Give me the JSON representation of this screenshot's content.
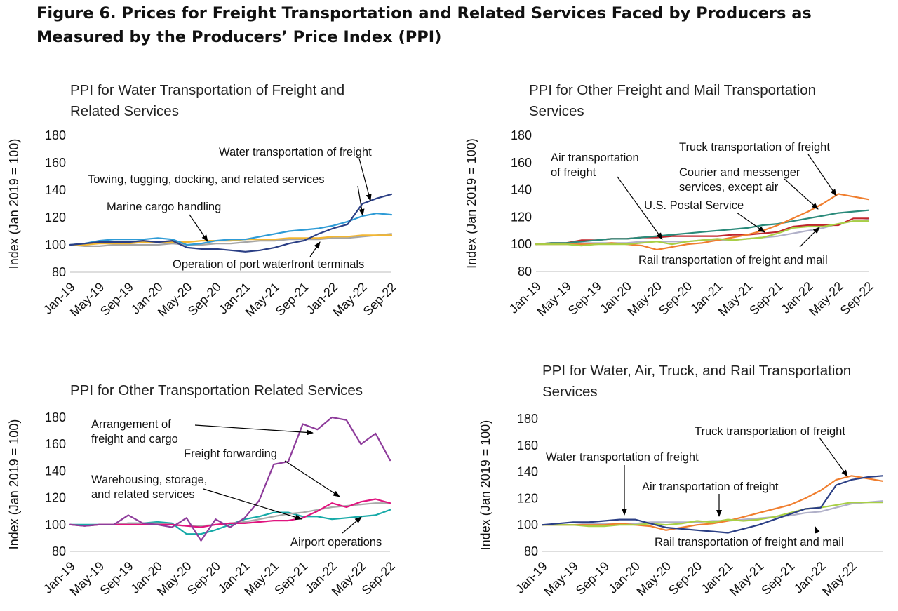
{
  "figure": {
    "title": "Figure 6. Prices for Freight Transportation and Related Services Faced by Producers as Measured by the Producers’ Price Index (PPI)"
  },
  "chart_data": [
    {
      "type": "line",
      "id": "water",
      "title": [
        "PPI for Water Transportation of Freight and",
        "Related Services"
      ],
      "ylabel": "Index (Jan 2019 = 100)",
      "ylim": [
        80,
        180
      ],
      "yticks": [
        80,
        100,
        120,
        140,
        160,
        180
      ],
      "xticks": [
        "Jan-19",
        "May-19",
        "Sep-19",
        "Jan-20",
        "May-20",
        "Sep-20",
        "Jan-21",
        "May-21",
        "Sep-21",
        "Jan-22",
        "May-22",
        "Sep-22"
      ],
      "grid": false,
      "x": [
        "Jan-19",
        "Mar-19",
        "May-19",
        "Jul-19",
        "Sep-19",
        "Nov-19",
        "Jan-20",
        "Mar-20",
        "May-20",
        "Jul-20",
        "Sep-20",
        "Nov-20",
        "Jan-21",
        "Mar-21",
        "May-21",
        "Jul-21",
        "Sep-21",
        "Nov-21",
        "Jan-22",
        "Mar-22",
        "May-22",
        "Jul-22",
        "Sep-22"
      ],
      "series": [
        {
          "name": "Water transportation of freight",
          "color": "#2b3f85",
          "values": [
            100,
            101,
            102,
            102,
            102,
            103,
            102,
            103,
            98,
            97,
            97,
            96,
            95,
            96,
            98,
            101,
            103,
            108,
            112,
            115,
            130,
            134,
            137
          ]
        },
        {
          "name": "Towing, tugging, docking, and related services",
          "color": "#2e9bd6",
          "values": [
            100,
            101,
            103,
            104,
            104,
            104,
            105,
            104,
            100,
            101,
            103,
            104,
            104,
            106,
            108,
            110,
            111,
            112,
            114,
            117,
            121,
            123,
            122
          ]
        },
        {
          "name": "Marine cargo handling",
          "color": "#f2b632",
          "values": [
            100,
            100,
            101,
            101,
            101,
            102,
            102,
            102,
            102,
            103,
            103,
            103,
            104,
            104,
            104,
            105,
            105,
            105,
            106,
            106,
            107,
            107,
            107
          ]
        },
        {
          "name": "Operation of port waterfront terminals",
          "color": "#a6a6a6",
          "values": [
            100,
            99,
            99,
            100,
            100,
            100,
            100,
            101,
            100,
            100,
            101,
            101,
            102,
            103,
            103,
            104,
            104,
            104,
            105,
            105,
            106,
            107,
            108
          ]
        }
      ],
      "annotations": [
        {
          "text": "Water transportation of freight",
          "series": 0
        },
        {
          "text": "Towing, tugging, docking, and related services",
          "series": 1
        },
        {
          "text": "Marine cargo handling",
          "series": 2
        },
        {
          "text": "Operation of port waterfront terminals",
          "series": 3
        }
      ]
    },
    {
      "type": "line",
      "id": "other-freight",
      "title": [
        "PPI for Other Freight and Mail Transportation",
        "Services"
      ],
      "ylabel": "Index (Jan 2019 = 100)",
      "ylim": [
        80,
        180
      ],
      "yticks": [
        80,
        100,
        120,
        140,
        160,
        180
      ],
      "xticks": [
        "Jan-19",
        "May-19",
        "Sep-19",
        "Jan-20",
        "May-20",
        "Sep-20",
        "Jan-21",
        "May-21",
        "Sep-21",
        "Jan-22",
        "May-22",
        "Sep-22"
      ],
      "grid": false,
      "x": [
        "Jan-19",
        "Mar-19",
        "May-19",
        "Jul-19",
        "Sep-19",
        "Nov-19",
        "Jan-20",
        "Mar-20",
        "May-20",
        "Jul-20",
        "Sep-20",
        "Nov-20",
        "Jan-21",
        "Mar-21",
        "May-21",
        "Jul-21",
        "Sep-21",
        "Nov-21",
        "Jan-22",
        "Mar-22",
        "May-22",
        "Jul-22",
        "Sep-22"
      ],
      "series": [
        {
          "name": "Air transportation of freight",
          "color": "#a8cf45",
          "values": [
            100,
            100,
            100,
            99,
            100,
            100,
            100,
            101,
            102,
            100,
            102,
            103,
            104,
            103,
            104,
            105,
            108,
            112,
            113,
            113,
            115,
            117,
            117
          ]
        },
        {
          "name": "Truck transportation of freight",
          "color": "#f07e2e",
          "values": [
            100,
            100,
            100,
            100,
            100,
            101,
            100,
            99,
            96,
            98,
            100,
            101,
            103,
            105,
            107,
            110,
            114,
            119,
            124,
            130,
            137,
            135,
            133
          ]
        },
        {
          "name": "Courier and messenger services, except air",
          "color": "#2a8a7a",
          "values": [
            100,
            101,
            101,
            102,
            103,
            104,
            104,
            105,
            106,
            107,
            108,
            109,
            110,
            111,
            112,
            114,
            115,
            117,
            119,
            121,
            123,
            124,
            125
          ]
        },
        {
          "name": "U.S. Postal Service",
          "color": "#c0262d",
          "values": [
            100,
            101,
            101,
            103,
            103,
            104,
            104,
            105,
            105,
            106,
            106,
            106,
            106,
            107,
            107,
            108,
            109,
            113,
            114,
            114,
            114,
            119,
            119
          ]
        },
        {
          "name": "Rail transportation of freight and mail",
          "color": "#b0b0c8",
          "values": [
            100,
            100,
            100,
            101,
            101,
            101,
            101,
            102,
            102,
            102,
            102,
            103,
            103,
            103,
            104,
            105,
            106,
            108,
            110,
            112,
            115,
            117,
            118
          ]
        }
      ],
      "annotations": [
        {
          "text": [
            "Air transportation",
            "of freight"
          ],
          "series": 0
        },
        {
          "text": "Truck transportation of freight",
          "series": 1
        },
        {
          "text": [
            "Courier and messenger",
            "services, except air"
          ],
          "series": 2
        },
        {
          "text": "U.S. Postal Service",
          "series": 3
        },
        {
          "text": "Rail transportation of freight and mail",
          "series": 4
        }
      ]
    },
    {
      "type": "line",
      "id": "other-related",
      "title": [
        "PPI for Other Transportation Related Services"
      ],
      "ylabel": "Index (Jan 2019 = 100)",
      "ylim": [
        80,
        180
      ],
      "yticks": [
        80,
        100,
        120,
        140,
        160,
        180
      ],
      "xticks": [
        "Jan-19",
        "May-19",
        "Sep-19",
        "Jan-20",
        "May-20",
        "Sep-20",
        "Jan-21",
        "May-21",
        "Sep-21",
        "Jan-22",
        "May-22",
        "Sep-22"
      ],
      "grid": false,
      "x": [
        "Jan-19",
        "Mar-19",
        "May-19",
        "Jul-19",
        "Sep-19",
        "Nov-19",
        "Jan-20",
        "Mar-20",
        "May-20",
        "Jul-20",
        "Sep-20",
        "Nov-20",
        "Jan-21",
        "Mar-21",
        "May-21",
        "Jul-21",
        "Sep-21",
        "Nov-21",
        "Jan-22",
        "Mar-22",
        "May-22",
        "Jul-22",
        "Sep-22"
      ],
      "series": [
        {
          "name": "Arrangement of freight and cargo",
          "color": "#8e3c9b",
          "values": [
            100,
            99,
            100,
            100,
            107,
            101,
            100,
            98,
            105,
            88,
            104,
            98,
            105,
            118,
            145,
            147,
            175,
            171,
            180,
            178,
            160,
            168,
            148
          ]
        },
        {
          "name": "Freight forwarding",
          "color": "#e0147f",
          "values": [
            100,
            99,
            100,
            100,
            100,
            100,
            100,
            100,
            99,
            98,
            100,
            101,
            101,
            102,
            103,
            103,
            105,
            110,
            116,
            113,
            117,
            119,
            116
          ]
        },
        {
          "name": "Warehousing, storage, and related services",
          "color": "#aaaaaa",
          "values": [
            100,
            99,
            100,
            100,
            101,
            101,
            101,
            100,
            99,
            99,
            100,
            101,
            102,
            104,
            106,
            108,
            109,
            111,
            113,
            114,
            115,
            116,
            116
          ]
        },
        {
          "name": "Airport operations",
          "color": "#17aaa8",
          "values": [
            100,
            100,
            100,
            100,
            101,
            101,
            102,
            101,
            93,
            93,
            96,
            100,
            104,
            106,
            109,
            109,
            106,
            106,
            104,
            105,
            106,
            107,
            111
          ]
        }
      ],
      "annotations": [
        {
          "text": [
            "Arrangement of",
            "freight and cargo"
          ],
          "series": 0
        },
        {
          "text": "Freight forwarding",
          "series": 1
        },
        {
          "text": [
            "Warehousing, storage,",
            "and related services"
          ],
          "series": 2
        },
        {
          "text": "Airport operations",
          "series": 3
        }
      ]
    },
    {
      "type": "line",
      "id": "modes",
      "title": [
        "PPI for Water, Air, Truck, and Rail Transportation",
        "Services"
      ],
      "ylabel": "Index (Jan 2019 = 100)",
      "ylim": [
        80,
        180
      ],
      "yticks": [
        80,
        100,
        120,
        140,
        160,
        180
      ],
      "xticks": [
        "Jan-19",
        "May-19",
        "Sep-19",
        "Jan-20",
        "May-20",
        "Sep-20",
        "Jan-21",
        "May-21",
        "Sep-21",
        "Jan-22",
        "May-22"
      ],
      "grid": false,
      "x": [
        "Jan-19",
        "Mar-19",
        "May-19",
        "Jul-19",
        "Sep-19",
        "Nov-19",
        "Jan-20",
        "Mar-20",
        "May-20",
        "Jul-20",
        "Sep-20",
        "Nov-20",
        "Jan-21",
        "Mar-21",
        "May-21",
        "Jul-21",
        "Sep-21",
        "Nov-21",
        "Jan-22",
        "Mar-22",
        "May-22",
        "Jul-22",
        "Sep-22"
      ],
      "series": [
        {
          "name": "Water transportation of freight",
          "color": "#2b3f85",
          "values": [
            100,
            101,
            102,
            102,
            103,
            104,
            104,
            101,
            98,
            97,
            96,
            95,
            94,
            97,
            100,
            104,
            108,
            112,
            113,
            130,
            134,
            136,
            137
          ]
        },
        {
          "name": "Air transportation of freight",
          "color": "#a8cf45",
          "values": [
            100,
            100,
            100,
            99,
            99,
            100,
            100,
            101,
            100,
            101,
            103,
            102,
            104,
            103,
            104,
            106,
            109,
            112,
            113,
            115,
            117,
            117,
            117
          ]
        },
        {
          "name": "Truck transportation of freight",
          "color": "#f07e2e",
          "values": [
            100,
            100,
            100,
            100,
            100,
            101,
            100,
            99,
            96,
            98,
            100,
            101,
            103,
            106,
            109,
            112,
            115,
            120,
            126,
            134,
            137,
            135,
            133
          ]
        },
        {
          "name": "Rail transportation of freight and mail",
          "color": "#b0b0c8",
          "values": [
            100,
            100,
            100,
            101,
            101,
            101,
            101,
            102,
            102,
            102,
            102,
            103,
            103,
            104,
            105,
            106,
            107,
            109,
            110,
            113,
            116,
            117,
            118
          ]
        }
      ],
      "annotations": [
        {
          "text": "Truck transportation of freight",
          "series": 2
        },
        {
          "text": "Water transportation of freight",
          "series": 0
        },
        {
          "text": "Air transportation of freight",
          "series": 1
        },
        {
          "text": "Rail transportation of freight and mail",
          "series": 3
        }
      ]
    }
  ]
}
